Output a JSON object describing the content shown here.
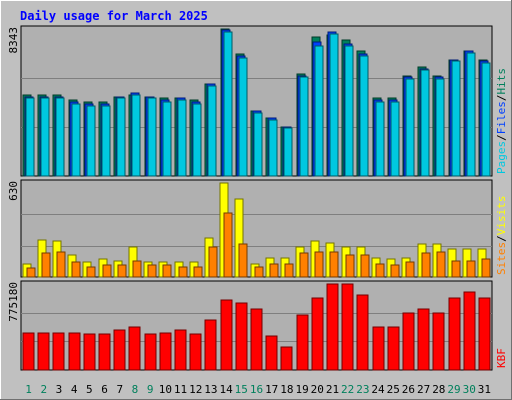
{
  "colors": {
    "background": "#c0c0c0",
    "plot": "#b0b0b0",
    "grid": "#7f7f7f",
    "title": "#0000ff",
    "hits": "#00805c",
    "files": "#0040ff",
    "pages": "#00c8e0",
    "visits": "#ffff00",
    "sites": "#ff8000",
    "kbytes": "#ff0000",
    "weekday_label": "#000000",
    "weekend_label": "#00805c",
    "axis_label": "#000000"
  },
  "chart_data": {
    "type": "bar",
    "title": "Daily usage for March 2025",
    "categories": [
      "1",
      "2",
      "3",
      "4",
      "5",
      "6",
      "7",
      "8",
      "9",
      "10",
      "11",
      "12",
      "13",
      "14",
      "15",
      "16",
      "17",
      "18",
      "19",
      "20",
      "21",
      "22",
      "23",
      "24",
      "25",
      "26",
      "27",
      "28",
      "29",
      "30",
      "31"
    ],
    "weekend_days": [
      "1",
      "2",
      "8",
      "9",
      "15",
      "16",
      "22",
      "23",
      "29",
      "30"
    ],
    "panels": [
      {
        "name": "hits-files-pages",
        "ymax_label": "8343",
        "ylim": [
          0,
          8343
        ],
        "side_labels": [
          "Pages",
          "/",
          "Files",
          "/",
          "Hits"
        ],
        "series": [
          {
            "name": "Hits",
            "values": [
              4600,
              4600,
              4600,
              4300,
              4200,
              4200,
              4500,
              4600,
              4500,
              4400,
              4400,
              4300,
              5200,
              8343,
              6900,
              3700,
              3300,
              2800,
              5800,
              7900,
              8000,
              7700,
              7100,
              4400,
              4400,
              5700,
              6200,
              5700,
              6600,
              7100,
              6600
            ]
          },
          {
            "name": "Files",
            "values": [
              4500,
              4500,
              4500,
              4200,
              4100,
              4100,
              4500,
              4700,
              4500,
              4300,
              4400,
              4200,
              5200,
              8280,
              6800,
              3700,
              3300,
              2800,
              5700,
              7600,
              8150,
              7500,
              6900,
              4300,
              4300,
              5600,
              6100,
              5600,
              6600,
              7100,
              6500
            ]
          },
          {
            "name": "Pages",
            "values": [
              4400,
              4400,
              4400,
              4100,
              4000,
              4000,
              4400,
              4600,
              4400,
              4200,
              4300,
              4100,
              5100,
              8200,
              6700,
              3600,
              3200,
              2700,
              5600,
              7400,
              8050,
              7400,
              6800,
              4200,
              4200,
              5500,
              6000,
              5500,
              6500,
              7000,
              6400
            ]
          }
        ]
      },
      {
        "name": "visits-sites",
        "ymax_label": "630",
        "ylim": [
          0,
          630
        ],
        "side_labels": [
          "Sites",
          "/",
          "Visits"
        ],
        "series": [
          {
            "name": "Visits",
            "values": [
              90,
              250,
              240,
              150,
              100,
              120,
              110,
              200,
              100,
              100,
              100,
              100,
              260,
              630,
              520,
              90,
              130,
              130,
              200,
              240,
              230,
              200,
              200,
              130,
              120,
              130,
              220,
              220,
              190,
              190,
              190
            ]
          },
          {
            "name": "Sites",
            "values": [
              60,
              160,
              170,
              100,
              70,
              80,
              80,
              110,
              80,
              80,
              70,
              70,
              200,
              430,
              220,
              70,
              90,
              90,
              160,
              170,
              170,
              150,
              150,
              90,
              80,
              100,
              160,
              170,
              110,
              110,
              120
            ]
          }
        ]
      },
      {
        "name": "kbytes",
        "ymax_label": "775180",
        "ylim": [
          0,
          775180
        ],
        "side_labels": [
          "KB",
          "F"
        ],
        "series": [
          {
            "name": "KBytes",
            "values": [
              330000,
              335000,
              335000,
              330000,
              325000,
              320000,
              360000,
              385000,
              320000,
              335000,
              360000,
              325000,
              450000,
              630000,
              605000,
              550000,
              305000,
              205000,
              500000,
              645000,
              775180,
              775180,
              680000,
              385000,
              385000,
              515000,
              550000,
              510000,
              650000,
              705000,
              645000
            ]
          }
        ]
      }
    ]
  }
}
